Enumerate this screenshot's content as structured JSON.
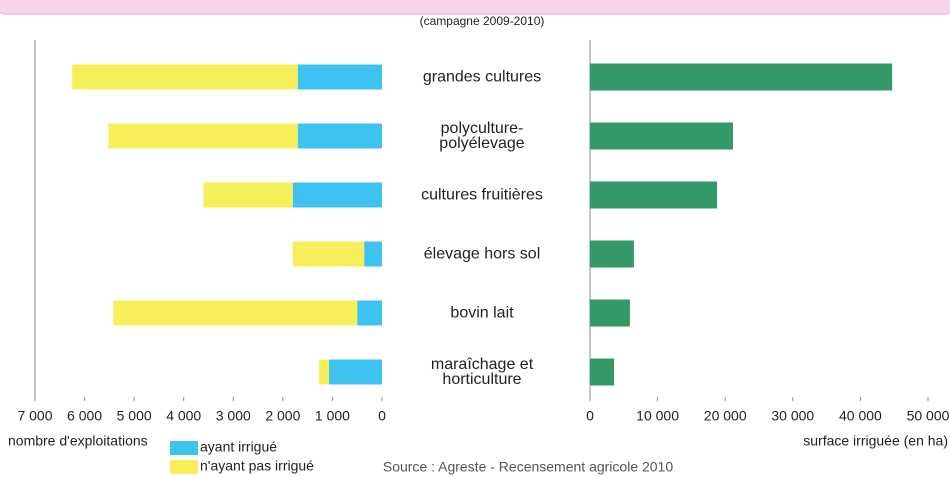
{
  "subtitle": "(campagne 2009-2010)",
  "source": "Source : Agreste - Recensement agricole 2010",
  "chart_data": [
    {
      "type": "stacked-barh",
      "categories": [
        "grandes cultures",
        "polyculture- polyélevage",
        "cultures fruitières",
        "élevage hors sol",
        "bovin lait",
        "maraîchage et horticulture"
      ],
      "series": [
        {
          "name": "ayant irrigué",
          "color": "#3ec3f0",
          "values": [
            1700,
            1700,
            1800,
            360,
            500,
            1070
          ]
        },
        {
          "name": "n'ayant pas irrigué",
          "color": "#f7ef5a",
          "values": [
            4550,
            3820,
            1800,
            1440,
            4920,
            200
          ]
        }
      ],
      "xlabel": "nombre d'exploitations",
      "xlim": [
        7000,
        0
      ],
      "xticks": [
        {
          "value": 7000,
          "label": "7 000"
        },
        {
          "value": 6000,
          "label": "6 000"
        },
        {
          "value": 5000,
          "label": "5 000"
        },
        {
          "value": 4000,
          "label": "4 000"
        },
        {
          "value": 3000,
          "label": "3 000"
        },
        {
          "value": 2000,
          "label": "2 000"
        },
        {
          "value": 1000,
          "label": "1 000"
        },
        0
      ]
    },
    {
      "type": "barh",
      "values": [
        44700,
        21150,
        18800,
        6500,
        5900,
        3550
      ],
      "color": "#339966",
      "xlabel": "surface irriguée (en ha)",
      "xlim": [
        0,
        50000
      ],
      "xticks": [
        0,
        {
          "value": 10000,
          "label": "10 000"
        },
        {
          "value": 20000,
          "label": "20 000"
        },
        {
          "value": 30000,
          "label": "30 000"
        },
        {
          "value": 40000,
          "label": "40 000"
        },
        {
          "value": 50000,
          "label": "50 000"
        }
      ]
    }
  ]
}
